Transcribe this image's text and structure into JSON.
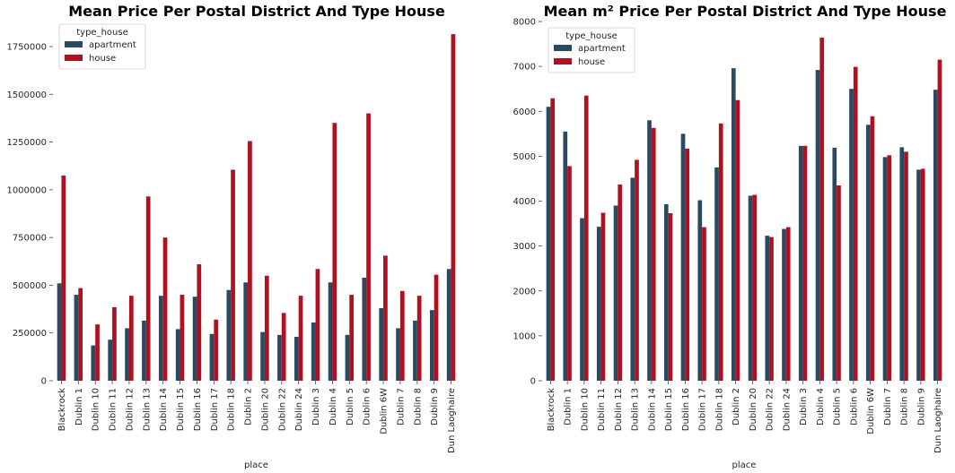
{
  "chart_data": [
    {
      "type": "bar",
      "title": "Mean Price Per Postal District And Type House",
      "xlabel": "place",
      "ylabel": "",
      "ylim": [
        0,
        1900000
      ],
      "yticks": [
        0,
        250000,
        500000,
        750000,
        1000000,
        1250000,
        1500000,
        1750000
      ],
      "grid": false,
      "legend": {
        "title": "type_house",
        "placement": "top-left"
      },
      "categories": [
        "Blackrock",
        "Dublin 1",
        "Dublin 10",
        "Dublin 11",
        "Dublin 12",
        "Dublin 13",
        "Dublin 14",
        "Dublin 15",
        "Dublin 16",
        "Dublin 17",
        "Dublin 18",
        "Dublin 2",
        "Dublin 20",
        "Dublin 22",
        "Dublin 24",
        "Dublin 3",
        "Dublin 4",
        "Dublin 5",
        "Dublin 6",
        "Dublin 6W",
        "Dublin 7",
        "Dublin 8",
        "Dublin 9",
        "Dun Laoghaire"
      ],
      "series": [
        {
          "name": "apartment",
          "color": "#2a4a62",
          "values": [
            510000,
            450000,
            185000,
            215000,
            275000,
            315000,
            445000,
            270000,
            440000,
            245000,
            475000,
            515000,
            255000,
            240000,
            230000,
            305000,
            515000,
            240000,
            540000,
            380000,
            275000,
            315000,
            370000,
            585000
          ]
        },
        {
          "name": "house",
          "color": "#b01020",
          "values": [
            1075000,
            485000,
            295000,
            385000,
            445000,
            965000,
            750000,
            450000,
            610000,
            320000,
            1105000,
            1255000,
            550000,
            355000,
            445000,
            585000,
            1350000,
            450000,
            1400000,
            655000,
            470000,
            445000,
            555000,
            1815000
          ]
        }
      ]
    },
    {
      "type": "bar",
      "title": "Mean m² Price Per Postal District And Type House",
      "xlabel": "place",
      "ylabel": "",
      "ylim": [
        0,
        8000
      ],
      "yticks": [
        0,
        1000,
        2000,
        3000,
        4000,
        5000,
        6000,
        7000,
        8000
      ],
      "grid": false,
      "legend": {
        "title": "type_house",
        "placement": "top-left"
      },
      "categories": [
        "Blackrock",
        "Dublin 1",
        "Dublin 10",
        "Dublin 11",
        "Dublin 12",
        "Dublin 13",
        "Dublin 14",
        "Dublin 15",
        "Dublin 16",
        "Dublin 17",
        "Dublin 18",
        "Dublin 2",
        "Dublin 20",
        "Dublin 22",
        "Dublin 24",
        "Dublin 3",
        "Dublin 4",
        "Dublin 5",
        "Dublin 6",
        "Dublin 6W",
        "Dublin 7",
        "Dublin 8",
        "Dublin 9",
        "Dun Laoghaire"
      ],
      "series": [
        {
          "name": "apartment",
          "color": "#2a4a62",
          "values": [
            6100,
            5550,
            3620,
            3430,
            3900,
            4520,
            5800,
            3930,
            5500,
            4020,
            4750,
            6960,
            4120,
            3230,
            3380,
            5230,
            6920,
            5190,
            6500,
            5700,
            4980,
            5200,
            4700,
            6480
          ]
        },
        {
          "name": "house",
          "color": "#b01020",
          "values": [
            6290,
            4780,
            6350,
            3740,
            4370,
            4920,
            5630,
            3730,
            5170,
            3420,
            5730,
            6250,
            4140,
            3200,
            3420,
            5230,
            7640,
            4350,
            6990,
            5890,
            5020,
            5100,
            4720,
            7150
          ]
        }
      ]
    }
  ]
}
